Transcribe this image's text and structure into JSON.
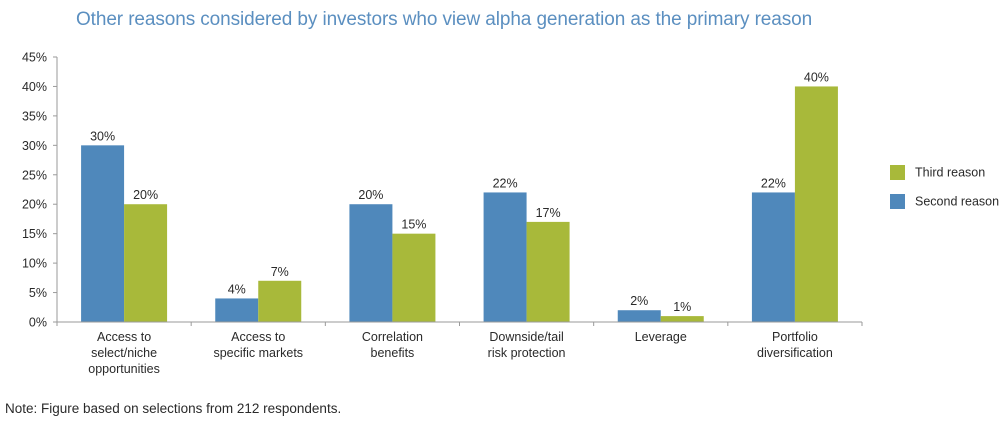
{
  "chart_data": {
    "type": "bar",
    "title": "Other reasons considered by investors who view alpha generation as the primary reason",
    "categories": [
      [
        "Access to",
        "select/niche",
        "opportunities"
      ],
      [
        "Access to",
        "specific markets"
      ],
      [
        "Correlation",
        "benefits"
      ],
      [
        "Downside/tail",
        "risk protection"
      ],
      [
        "Leverage"
      ],
      [
        "Portfolio",
        "diversification"
      ]
    ],
    "series": [
      {
        "name": "Second reason",
        "color": "#4f88bb",
        "values": [
          30,
          4,
          20,
          22,
          2,
          22
        ],
        "labels": [
          "30%",
          "4%",
          "20%",
          "22%",
          "2%",
          "22%"
        ]
      },
      {
        "name": "Third reason",
        "color": "#a8b93a",
        "values": [
          20,
          7,
          15,
          17,
          1,
          40
        ],
        "labels": [
          "20%",
          "7%",
          "15%",
          "17%",
          "1%",
          "40%"
        ]
      }
    ],
    "yticks": [
      "0%",
      "5%",
      "10%",
      "15%",
      "20%",
      "25%",
      "30%",
      "35%",
      "40%",
      "45%"
    ],
    "ylim": [
      0,
      45
    ],
    "legend_position": "right",
    "legend_order": [
      "Third reason",
      "Second reason"
    ]
  },
  "note": "Note: Figure based on selections from 212 respondents."
}
